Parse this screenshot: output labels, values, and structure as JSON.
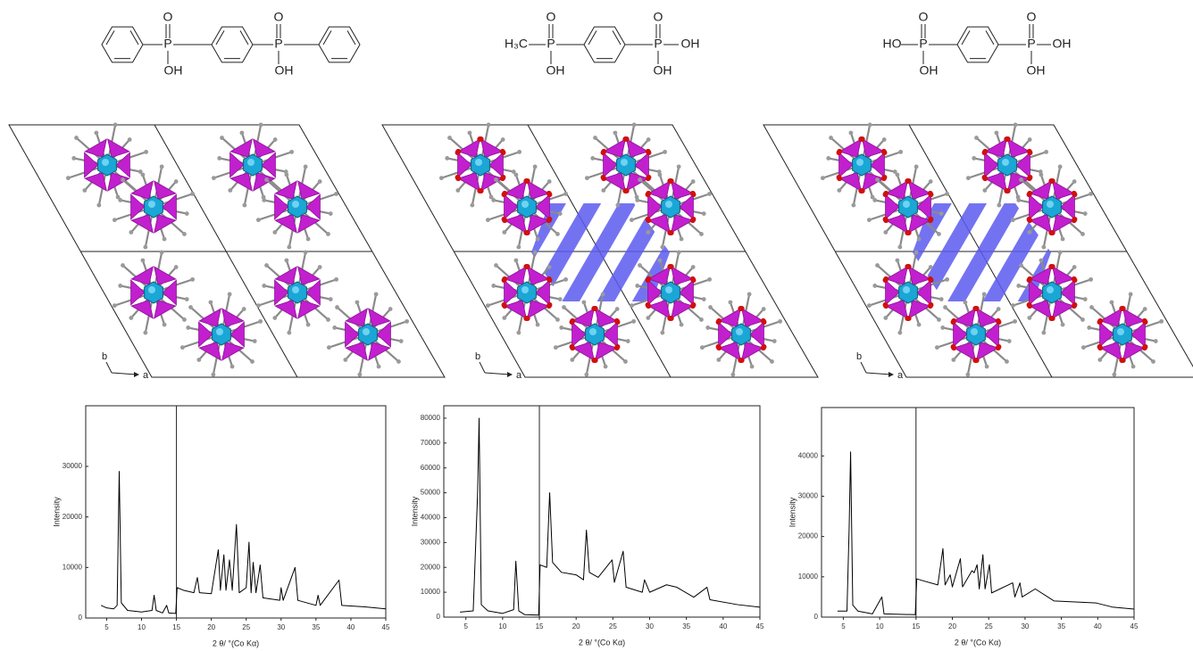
{
  "molecules": [
    {
      "labels": [
        "O",
        "P",
        "OH",
        "O",
        "P",
        "OH"
      ]
    },
    {
      "labels": [
        "H₃C",
        "O",
        "P",
        "OH",
        "O",
        "P",
        "OH",
        "OH"
      ]
    },
    {
      "labels": [
        "HO",
        "O",
        "P",
        "OH",
        "O",
        "P",
        "OH",
        "OH"
      ]
    }
  ],
  "structures": [
    {
      "axis_labels": [
        "b",
        "a"
      ]
    },
    {
      "axis_labels": [
        "b",
        "a"
      ]
    },
    {
      "axis_labels": [
        "b",
        "a"
      ]
    }
  ],
  "chart_data": [
    {
      "type": "line",
      "xlabel": "2 θ/ °(Co Kα)",
      "ylabel": "Intensity",
      "break_x": 15,
      "x": [
        4.2,
        5,
        6,
        6.5,
        6.8,
        7.1,
        8,
        10,
        11.5,
        11.8,
        12.1,
        13,
        13.6,
        13.9,
        14.9,
        15.1,
        16,
        17.5,
        18,
        18.3,
        20,
        21,
        21.3,
        21.8,
        22.1,
        22.6,
        23,
        23.6,
        24,
        25,
        25.4,
        25.7,
        26,
        26.4,
        27,
        27.4,
        29.8,
        30,
        30.3,
        32,
        32.4,
        35,
        35.3,
        35.6,
        38.3,
        38.7,
        42,
        45
      ],
      "series": [
        {
          "color": "#000000",
          "values": [
            2500,
            2000,
            1800,
            2500,
            29000,
            3000,
            1500,
            1200,
            1500,
            4500,
            1500,
            1000,
            2500,
            1000,
            900,
            6000,
            5500,
            5000,
            8000,
            5000,
            4800,
            13500,
            5500,
            12500,
            5500,
            11500,
            5500,
            18500,
            5000,
            6000,
            15000,
            5000,
            11000,
            5000,
            10500,
            4000,
            3500,
            6000,
            3500,
            10000,
            3500,
            2500,
            4500,
            2500,
            7500,
            2500,
            2200,
            1800
          ]
        }
      ],
      "xlim": [
        2,
        45
      ],
      "xticks": [
        5,
        10,
        15,
        20,
        25,
        30,
        35,
        40,
        45
      ],
      "ylim": [
        0,
        42000
      ],
      "yticks": [
        0,
        10000,
        20000,
        30000
      ]
    },
    {
      "type": "line",
      "xlabel": "2 θ/ °(Co Kα)",
      "ylabel": "Intensity",
      "break_x": 15,
      "x": [
        4.2,
        6,
        6.6,
        6.8,
        7.1,
        8,
        10,
        11.5,
        11.8,
        12.2,
        13,
        14.9,
        15.1,
        16,
        16.4,
        16.8,
        18,
        20,
        21,
        21.4,
        21.8,
        23,
        24.9,
        25.2,
        26.4,
        26.8,
        29,
        29.3,
        30,
        32.3,
        33.7,
        36,
        37.8,
        38.2,
        42,
        45
      ],
      "series": [
        {
          "color": "#000000",
          "values": [
            2000,
            2500,
            50000,
            80000,
            5000,
            2500,
            1500,
            3000,
            22500,
            2500,
            1000,
            800,
            21000,
            20000,
            50000,
            22000,
            18000,
            17000,
            15000,
            35000,
            18000,
            16000,
            23000,
            14000,
            26500,
            12000,
            10000,
            15000,
            10000,
            13000,
            12000,
            8000,
            12000,
            7000,
            5000,
            4000
          ]
        }
      ],
      "xlim": [
        2,
        45
      ],
      "xticks": [
        5,
        10,
        15,
        20,
        25,
        30,
        35,
        40,
        45
      ],
      "ylim": [
        0,
        85000
      ],
      "yticks": [
        0,
        10000,
        20000,
        30000,
        40000,
        50000,
        60000,
        70000,
        80000
      ]
    },
    {
      "type": "line",
      "xlabel": "2 θ/ °(Co Kα)",
      "ylabel": "Intensity",
      "break_x": 15,
      "x": [
        4.2,
        5.5,
        5.8,
        6,
        6.3,
        7,
        9,
        10.3,
        10.6,
        14.9,
        15.1,
        16,
        18,
        18.7,
        19,
        19.7,
        20,
        21.1,
        21.4,
        22.7,
        23,
        23.4,
        23.7,
        24.2,
        24.5,
        25.1,
        25.4,
        28.3,
        28.6,
        29.3,
        29.6,
        31.4,
        34,
        39.8,
        42,
        45
      ],
      "series": [
        {
          "color": "#000000",
          "values": [
            1500,
            1500,
            22000,
            41000,
            3000,
            1500,
            800,
            5000,
            800,
            600,
            9500,
            9000,
            8000,
            17000,
            8000,
            10500,
            7500,
            14500,
            7500,
            11500,
            11000,
            13000,
            7000,
            15500,
            7000,
            13000,
            6000,
            8500,
            5000,
            8500,
            5000,
            7000,
            4000,
            3500,
            2500,
            2000
          ]
        }
      ],
      "xlim": [
        2,
        45
      ],
      "xticks": [
        5,
        10,
        15,
        20,
        25,
        30,
        35,
        40,
        45
      ],
      "ylim": [
        0,
        52000
      ],
      "yticks": [
        0,
        10000,
        20000,
        30000,
        40000
      ]
    }
  ]
}
